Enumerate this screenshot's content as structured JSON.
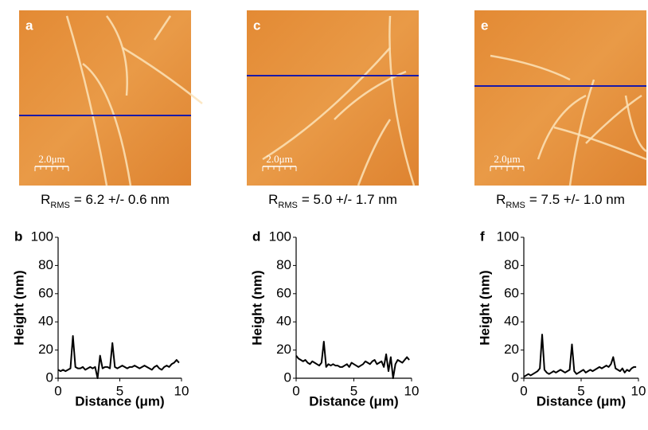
{
  "images": [
    {
      "label": "a",
      "scale_bar": "2.0μm",
      "rms_symbol": "R",
      "rms_subscript": "RMS",
      "rms_text": "= 6.2 +/- 0.6 nm"
    },
    {
      "label": "c",
      "scale_bar": "2.0μm",
      "rms_symbol": "R",
      "rms_subscript": "RMS",
      "rms_text": "= 5.0 +/- 1.7 nm"
    },
    {
      "label": "e",
      "scale_bar": "2.0μm",
      "rms_symbol": "R",
      "rms_subscript": "RMS",
      "rms_text": "= 7.5 +/- 1.0 nm"
    }
  ],
  "chart_data": [
    {
      "type": "line",
      "panel_label": "b",
      "xlabel": "Distance (μm)",
      "ylabel": "Height (nm)",
      "color": "#000000",
      "xlim": [
        0,
        10
      ],
      "ylim": [
        0,
        100
      ],
      "xticks": [
        0,
        5,
        10
      ],
      "yticks": [
        0,
        20,
        40,
        60,
        80,
        100
      ],
      "x": [
        0,
        0.2,
        0.4,
        0.6,
        0.8,
        1,
        1.2,
        1.4,
        1.6,
        1.8,
        2,
        2.2,
        2.4,
        2.6,
        2.8,
        3,
        3.2,
        3.4,
        3.6,
        3.8,
        4,
        4.2,
        4.4,
        4.6,
        4.8,
        5,
        5.2,
        5.4,
        5.6,
        5.8,
        6,
        6.2,
        6.4,
        6.6,
        6.8,
        7,
        7.2,
        7.4,
        7.6,
        7.8,
        8,
        8.2,
        8.4,
        8.6,
        8.8,
        9,
        9.2,
        9.4,
        9.6,
        9.8
      ],
      "values": [
        6,
        5,
        6,
        5,
        6,
        7,
        30,
        8,
        7,
        7,
        8,
        6,
        7,
        8,
        7,
        8,
        0,
        16,
        7,
        8,
        8,
        7,
        25,
        8,
        7,
        8,
        9,
        8,
        7,
        8,
        8,
        9,
        8,
        7,
        8,
        9,
        8,
        7,
        6,
        8,
        9,
        7,
        6,
        8,
        9,
        8,
        10,
        11,
        13,
        11
      ]
    },
    {
      "type": "line",
      "panel_label": "d",
      "xlabel": "Distance (μm)",
      "ylabel": "Height (nm)",
      "color": "#000000",
      "xlim": [
        0,
        10
      ],
      "ylim": [
        0,
        100
      ],
      "xticks": [
        0,
        5,
        10
      ],
      "yticks": [
        0,
        20,
        40,
        60,
        80,
        100
      ],
      "x": [
        0,
        0.2,
        0.4,
        0.6,
        0.8,
        1,
        1.2,
        1.4,
        1.6,
        1.8,
        2,
        2.2,
        2.4,
        2.6,
        2.8,
        3,
        3.2,
        3.4,
        3.6,
        3.8,
        4,
        4.2,
        4.4,
        4.6,
        4.8,
        5,
        5.2,
        5.4,
        5.6,
        5.8,
        6,
        6.2,
        6.4,
        6.6,
        6.8,
        7,
        7.2,
        7.4,
        7.6,
        7.8,
        8,
        8.2,
        8.4,
        8.6,
        8.8,
        9,
        9.2,
        9.4,
        9.6,
        9.8
      ],
      "values": [
        16,
        14,
        13,
        12,
        13,
        11,
        10,
        12,
        11,
        10,
        9,
        11,
        26,
        8,
        10,
        9,
        10,
        9,
        9,
        8,
        8,
        9,
        10,
        8,
        11,
        10,
        9,
        8,
        9,
        10,
        12,
        11,
        10,
        12,
        13,
        10,
        11,
        12,
        8,
        17,
        5,
        15,
        0,
        10,
        13,
        12,
        11,
        13,
        15,
        13
      ]
    },
    {
      "type": "line",
      "panel_label": "f",
      "xlabel": "Distance (μm)",
      "ylabel": "Height (nm)",
      "color": "#000000",
      "xlim": [
        0,
        10
      ],
      "ylim": [
        0,
        100
      ],
      "xticks": [
        0,
        5,
        10
      ],
      "yticks": [
        0,
        20,
        40,
        60,
        80,
        100
      ],
      "x": [
        0,
        0.2,
        0.4,
        0.6,
        0.8,
        1,
        1.2,
        1.4,
        1.6,
        1.8,
        2,
        2.2,
        2.4,
        2.6,
        2.8,
        3,
        3.2,
        3.4,
        3.6,
        3.8,
        4,
        4.2,
        4.4,
        4.6,
        4.8,
        5,
        5.2,
        5.4,
        5.6,
        5.8,
        6,
        6.2,
        6.4,
        6.6,
        6.8,
        7,
        7.2,
        7.4,
        7.6,
        7.8,
        8,
        8.2,
        8.4,
        8.6,
        8.8,
        9,
        9.2,
        9.4,
        9.6,
        9.8
      ],
      "values": [
        1,
        2,
        3,
        2,
        3,
        4,
        5,
        7,
        31,
        6,
        4,
        3,
        4,
        5,
        4,
        5,
        6,
        5,
        4,
        5,
        6,
        24,
        5,
        3,
        4,
        5,
        6,
        4,
        5,
        6,
        5,
        6,
        7,
        8,
        7,
        8,
        9,
        8,
        10,
        15,
        7,
        6,
        5,
        7,
        4,
        6,
        5,
        7,
        8,
        8
      ]
    }
  ]
}
